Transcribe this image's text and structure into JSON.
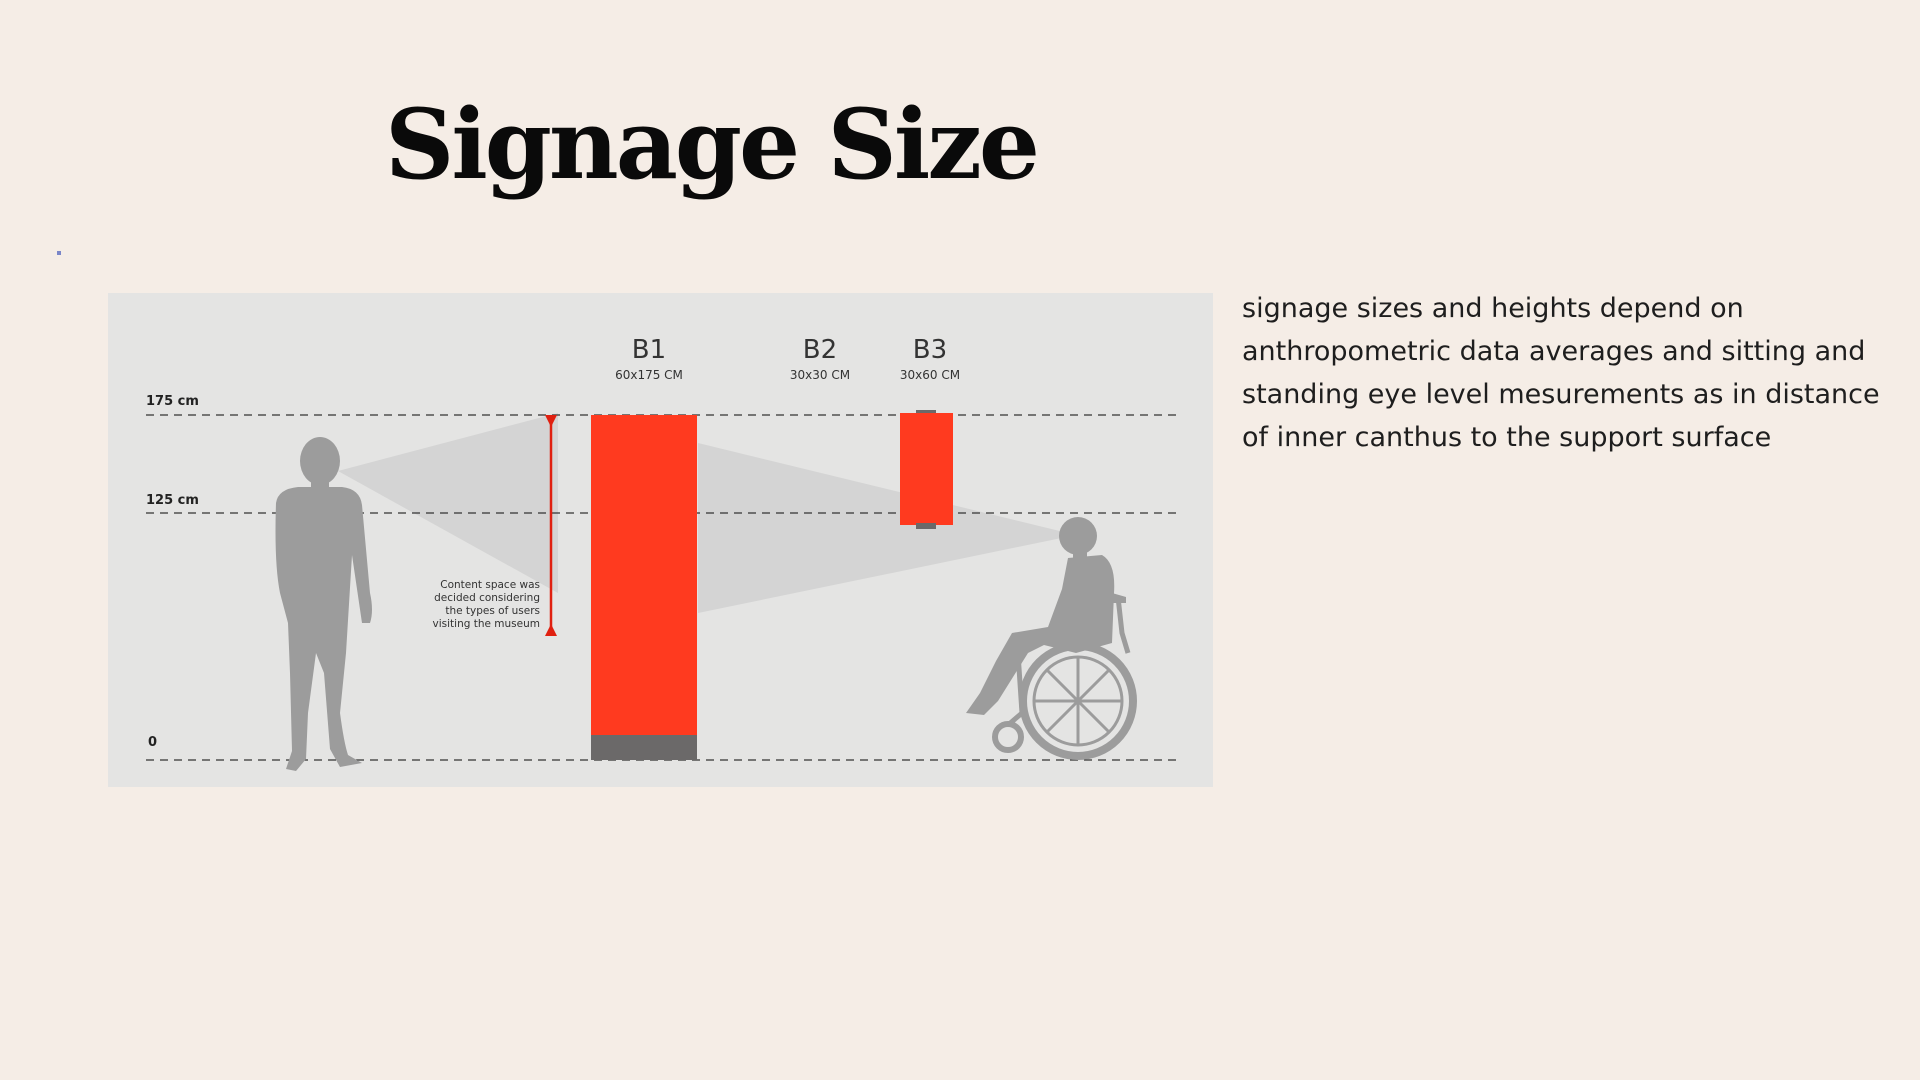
{
  "title": "Signage Size",
  "description": "signage  sizes and heights depend on anthropometric data averages  and sitting and standing eye level mesurements as in distance of inner canthus to the support surface",
  "diagram": {
    "height_labels": [
      "175 cm",
      "125 cm",
      "0"
    ],
    "signs": [
      {
        "id": "B1",
        "size": "60x175 CM"
      },
      {
        "id": "B2",
        "size": "30x30 CM"
      },
      {
        "id": "B3",
        "size": "30x60 CM"
      }
    ],
    "annotation_lines": [
      "Content space was",
      "decided considering",
      "the types of users",
      "visiting the  museum"
    ],
    "figures": [
      "standing-person-icon",
      "wheelchair-user-icon"
    ],
    "colors": {
      "sign": "#ff3a1f",
      "base": "#6b6969",
      "figure": "#9c9c9c",
      "background": "#e4e4e3"
    }
  }
}
